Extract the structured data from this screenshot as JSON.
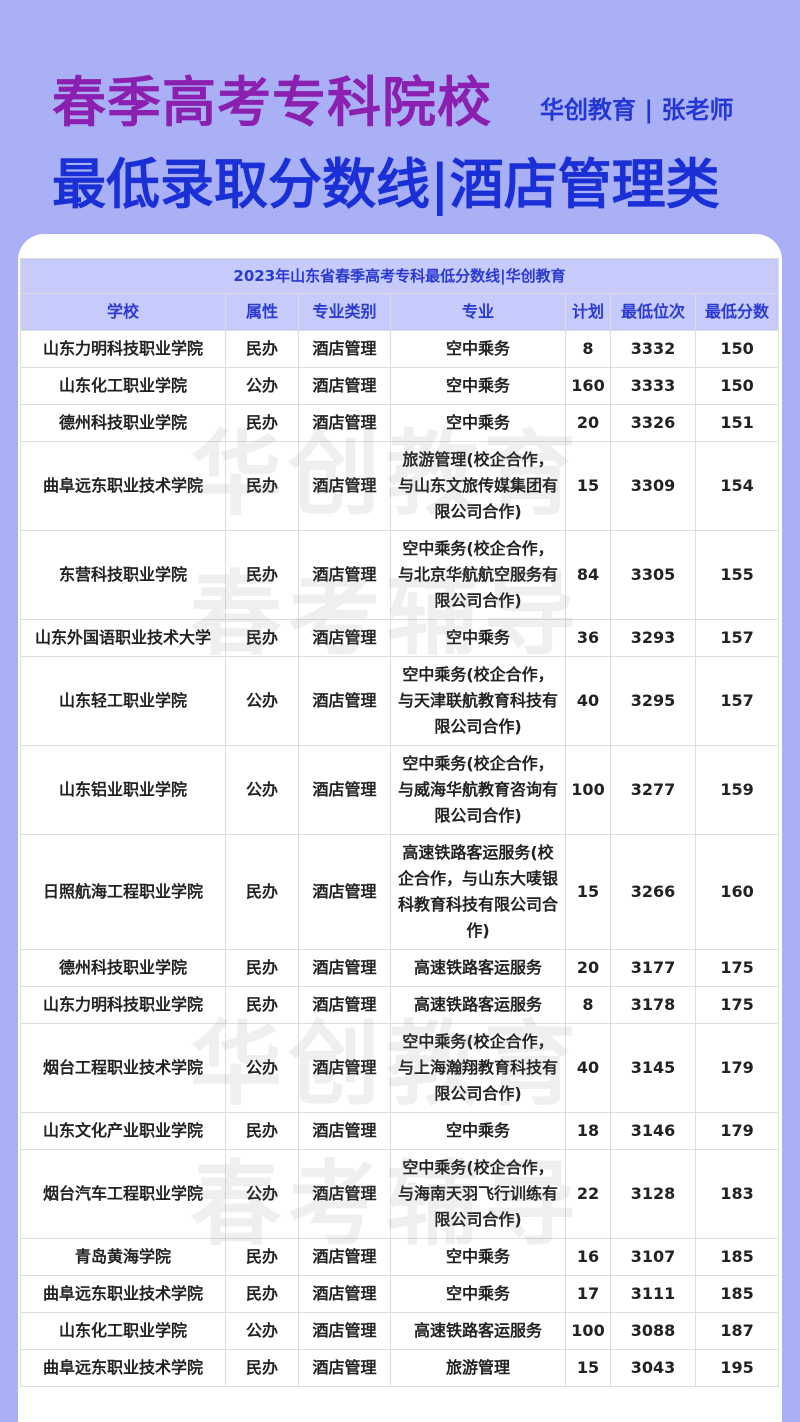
{
  "header": {
    "title": "春季高考专科院校",
    "author": "华创教育 | 张老师",
    "subtitle": "最低录取分数线|酒店管理类"
  },
  "watermark": [
    "华创教育",
    "春考辅导"
  ],
  "table": {
    "caption": "2023年山东省春季高考专科最低分数线|华创教育",
    "columns": [
      "学校",
      "属性",
      "专业类别",
      "专业",
      "计划",
      "最低位次",
      "最低分数"
    ],
    "rows": [
      [
        "山东力明科技职业学院",
        "民办",
        "酒店管理",
        "空中乘务",
        "8",
        "3332",
        "150"
      ],
      [
        "山东化工职业学院",
        "公办",
        "酒店管理",
        "空中乘务",
        "160",
        "3333",
        "150"
      ],
      [
        "德州科技职业学院",
        "民办",
        "酒店管理",
        "空中乘务",
        "20",
        "3326",
        "151"
      ],
      [
        "曲阜远东职业技术学院",
        "民办",
        "酒店管理",
        "旅游管理(校企合作，与山东文旅传媒集团有限公司合作)",
        "15",
        "3309",
        "154"
      ],
      [
        "东营科技职业学院",
        "民办",
        "酒店管理",
        "空中乘务(校企合作，与北京华航航空服务有限公司合作)",
        "84",
        "3305",
        "155"
      ],
      [
        "山东外国语职业技术大学",
        "民办",
        "酒店管理",
        "空中乘务",
        "36",
        "3293",
        "157"
      ],
      [
        "山东轻工职业学院",
        "公办",
        "酒店管理",
        "空中乘务(校企合作，与天津联航教育科技有限公司合作)",
        "40",
        "3295",
        "157"
      ],
      [
        "山东铝业职业学院",
        "公办",
        "酒店管理",
        "空中乘务(校企合作，与威海华航教育咨询有限公司合作)",
        "100",
        "3277",
        "159"
      ],
      [
        "日照航海工程职业学院",
        "民办",
        "酒店管理",
        "高速铁路客运服务(校企合作，与山东大唛银科教育科技有限公司合作)",
        "15",
        "3266",
        "160"
      ],
      [
        "德州科技职业学院",
        "民办",
        "酒店管理",
        "高速铁路客运服务",
        "20",
        "3177",
        "175"
      ],
      [
        "山东力明科技职业学院",
        "民办",
        "酒店管理",
        "高速铁路客运服务",
        "8",
        "3178",
        "175"
      ],
      [
        "烟台工程职业技术学院",
        "公办",
        "酒店管理",
        "空中乘务(校企合作，与上海瀚翔教育科技有限公司合作)",
        "40",
        "3145",
        "179"
      ],
      [
        "山东文化产业职业学院",
        "民办",
        "酒店管理",
        "空中乘务",
        "18",
        "3146",
        "179"
      ],
      [
        "烟台汽车工程职业学院",
        "公办",
        "酒店管理",
        "空中乘务(校企合作，与海南天羽飞行训练有限公司合作)",
        "22",
        "3128",
        "183"
      ],
      [
        "青岛黄海学院",
        "民办",
        "酒店管理",
        "空中乘务",
        "16",
        "3107",
        "185"
      ],
      [
        "曲阜远东职业技术学院",
        "民办",
        "酒店管理",
        "空中乘务",
        "17",
        "3111",
        "185"
      ],
      [
        "山东化工职业学院",
        "公办",
        "酒店管理",
        "高速铁路客运服务",
        "100",
        "3088",
        "187"
      ],
      [
        "曲阜远东职业技术学院",
        "民办",
        "酒店管理",
        "旅游管理",
        "15",
        "3043",
        "195"
      ]
    ]
  }
}
